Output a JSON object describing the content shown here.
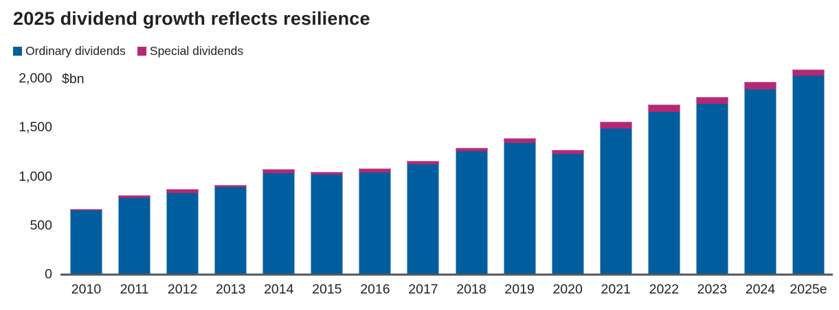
{
  "title": "2025 dividend growth reflects resilience",
  "unit_label": "$bn",
  "legend": [
    {
      "label": "Ordinary dividends",
      "color": "#005e9e"
    },
    {
      "label": "Special dividends",
      "color": "#b52873"
    }
  ],
  "colors": {
    "ordinary_blue": "#005e9e",
    "special_pink": "#b52873",
    "axis_line": "#58595b",
    "text": "#231f20"
  },
  "chart_data": {
    "type": "bar",
    "stacked": true,
    "title": "2025 dividend growth reflects resilience",
    "xlabel": "",
    "ylabel": "$bn",
    "grid": false,
    "legend_position": "top-left",
    "ylim": [
      0,
      2000
    ],
    "y_tick_values": [
      0,
      500,
      1000,
      1500,
      2000
    ],
    "y_tick_labels": [
      "0",
      "500",
      "1,000",
      "1,500",
      "2,000"
    ],
    "categories": [
      "2010",
      "2011",
      "2012",
      "2013",
      "2014",
      "2015",
      "2016",
      "2017",
      "2018",
      "2019",
      "2020",
      "2021",
      "2022",
      "2023",
      "2024",
      "2025e"
    ],
    "series": [
      {
        "name": "Ordinary dividends",
        "color": "#005e9e",
        "values": [
          650,
          780,
          825,
          890,
          1030,
          1015,
          1040,
          1120,
          1255,
          1340,
          1225,
          1485,
          1655,
          1740,
          1890,
          2030
        ]
      },
      {
        "name": "Special dividends",
        "color": "#b52873",
        "values": [
          15,
          30,
          45,
          20,
          45,
          30,
          40,
          40,
          35,
          50,
          45,
          75,
          75,
          70,
          75,
          60
        ]
      }
    ],
    "totals": [
      665,
      810,
      870,
      910,
      1075,
      1045,
      1080,
      1160,
      1290,
      1390,
      1270,
      1560,
      1730,
      1810,
      1965,
      2090
    ]
  }
}
